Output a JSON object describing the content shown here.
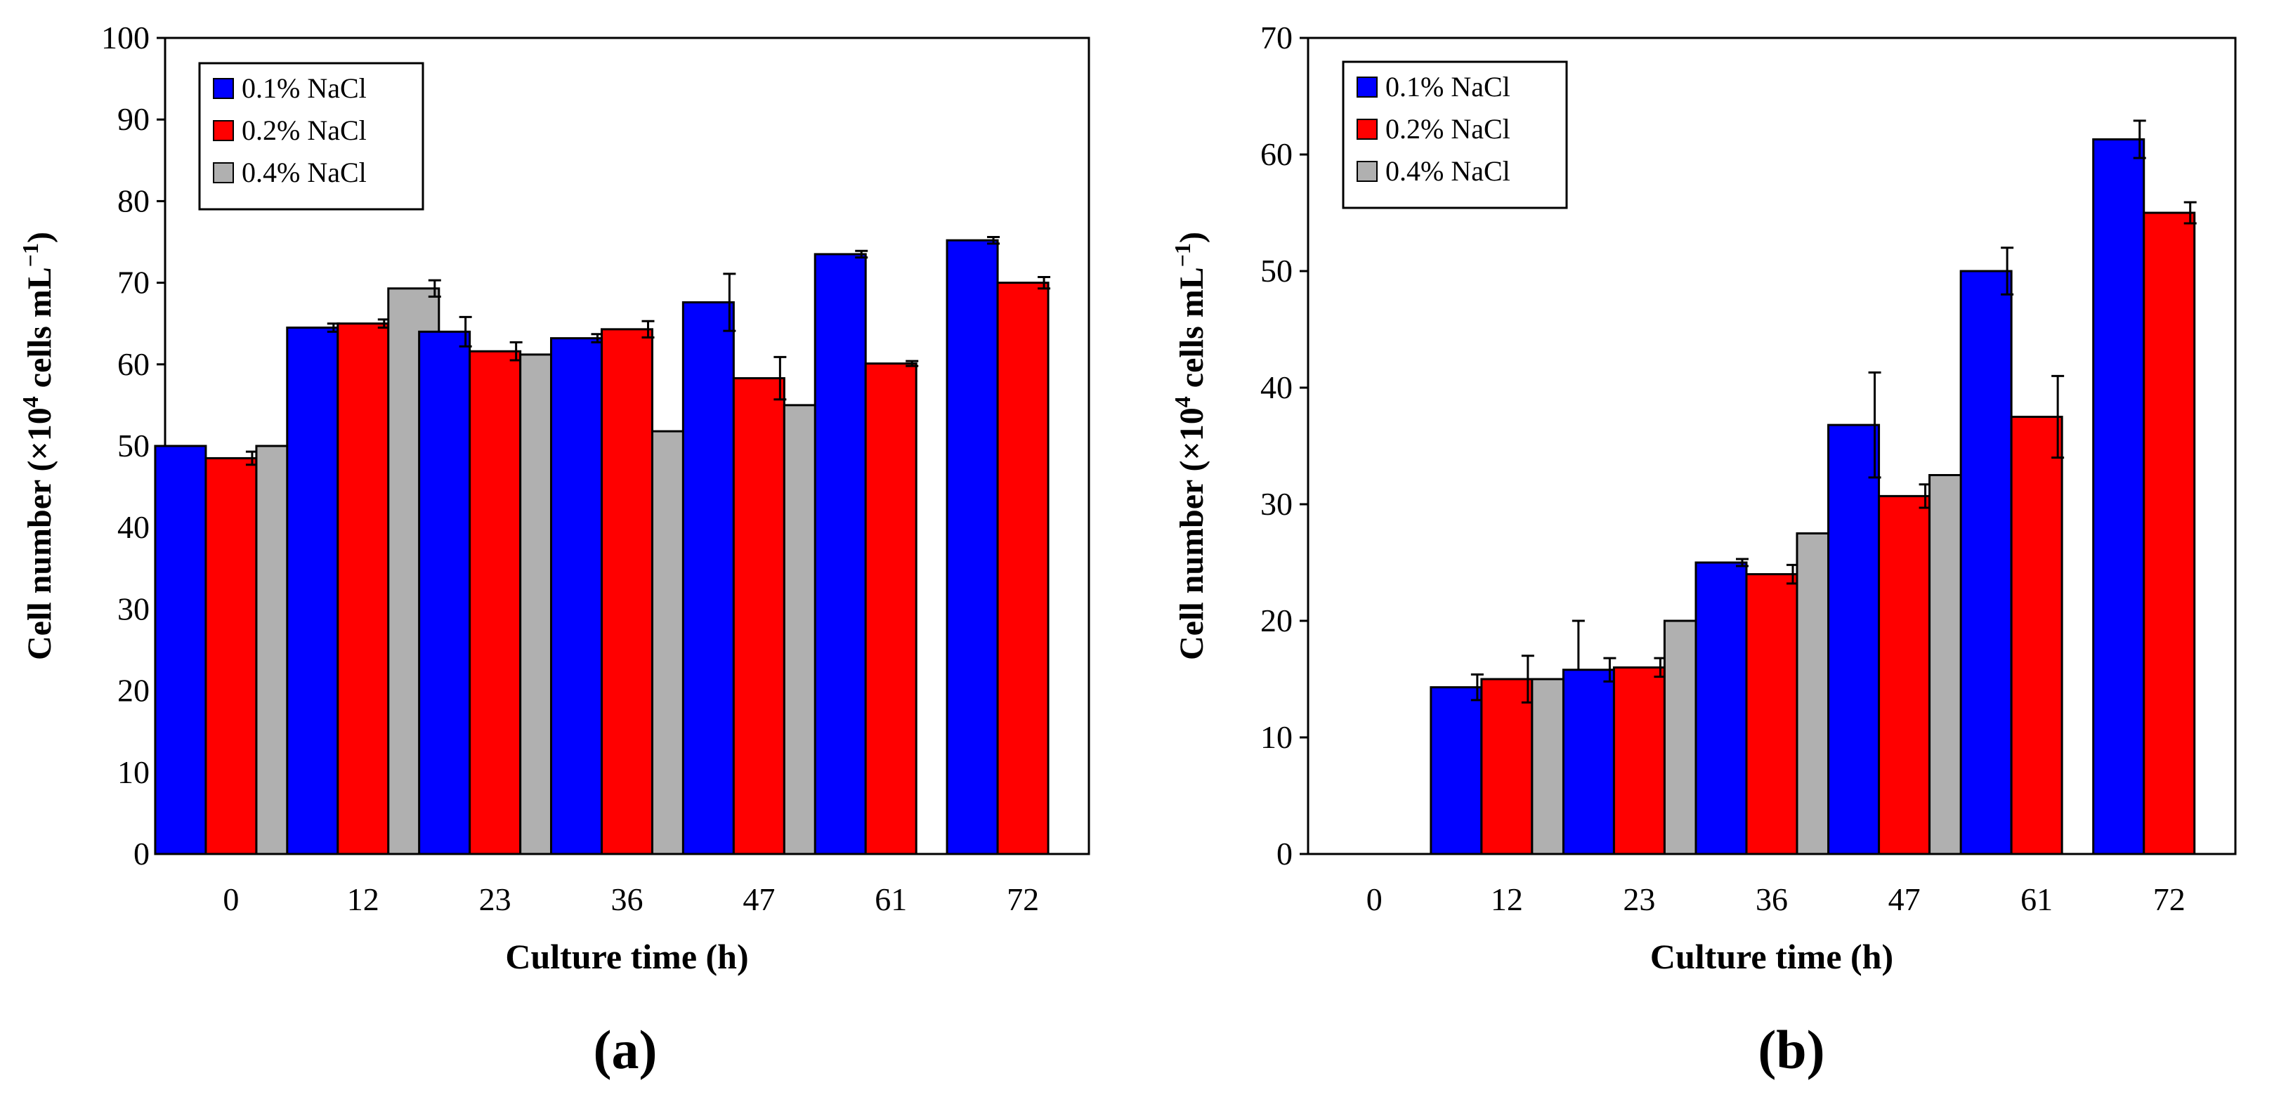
{
  "chart_data": [
    {
      "type": "bar",
      "panel_label": "(a)",
      "xlabel": "Culture time (h)",
      "ylabel_main": "Cell number (×10",
      "ylabel_exp": "4",
      "ylabel_rest": " cells mL",
      "ylabel_unit_exp": "−1",
      "ylabel_close": ")",
      "ylim": [
        0,
        100
      ],
      "yticks": [
        0,
        10,
        20,
        30,
        40,
        50,
        60,
        70,
        80,
        90,
        100
      ],
      "categories": [
        "0",
        "12",
        "23",
        "36",
        "47",
        "61",
        "72"
      ],
      "legend_position": "top-left",
      "series": [
        {
          "name": "0.1% NaCl",
          "color": "#0000ff",
          "values": [
            50,
            64.5,
            64,
            63.2,
            67.6,
            73.5,
            75.2
          ],
          "errors": [
            0,
            0.5,
            1.8,
            0.5,
            3.5,
            0.4,
            0.4
          ]
        },
        {
          "name": "0.2% NaCl",
          "color": "#ff0000",
          "values": [
            48.5,
            65,
            61.6,
            64.3,
            58.3,
            60.1,
            70
          ],
          "errors": [
            0.8,
            0.5,
            1.1,
            1.0,
            2.6,
            0.3,
            0.7
          ]
        },
        {
          "name": "0.4% NaCl",
          "color": "#b0b0b0",
          "values": [
            50,
            69.3,
            61.2,
            51.8,
            55,
            null,
            null
          ],
          "errors": [
            0.6,
            1.0,
            1.5,
            0.3,
            1.3,
            null,
            null
          ]
        }
      ]
    },
    {
      "type": "bar",
      "panel_label": "(b)",
      "xlabel": "Culture time (h)",
      "ylabel_main": "Cell number (×10",
      "ylabel_exp": "4",
      "ylabel_rest": " cells mL",
      "ylabel_unit_exp": "−1",
      "ylabel_close": ")",
      "ylim": [
        0,
        70
      ],
      "yticks": [
        0,
        10,
        20,
        30,
        40,
        50,
        60,
        70
      ],
      "categories": [
        "0",
        "12",
        "23",
        "36",
        "47",
        "61",
        "72"
      ],
      "legend_position": "top-left",
      "series": [
        {
          "name": "0.1% NaCl",
          "color": "#0000ff",
          "values": [
            0,
            14.3,
            15.8,
            25,
            36.8,
            50,
            61.3
          ],
          "errors": [
            0,
            1.1,
            1.0,
            0.3,
            4.5,
            2.0,
            1.6
          ]
        },
        {
          "name": "0.2% NaCl",
          "color": "#ff0000",
          "values": [
            0,
            15,
            16,
            24,
            30.7,
            37.5,
            55
          ],
          "errors": [
            0,
            2.0,
            0.8,
            0.8,
            1.0,
            3.5,
            0.9
          ]
        },
        {
          "name": "0.4% NaCl",
          "color": "#b0b0b0",
          "values": [
            0,
            15,
            20,
            27.5,
            32.5,
            null,
            null
          ],
          "errors": [
            0,
            5.0,
            3.6,
            3.5,
            3.5,
            null,
            null
          ]
        }
      ]
    }
  ]
}
